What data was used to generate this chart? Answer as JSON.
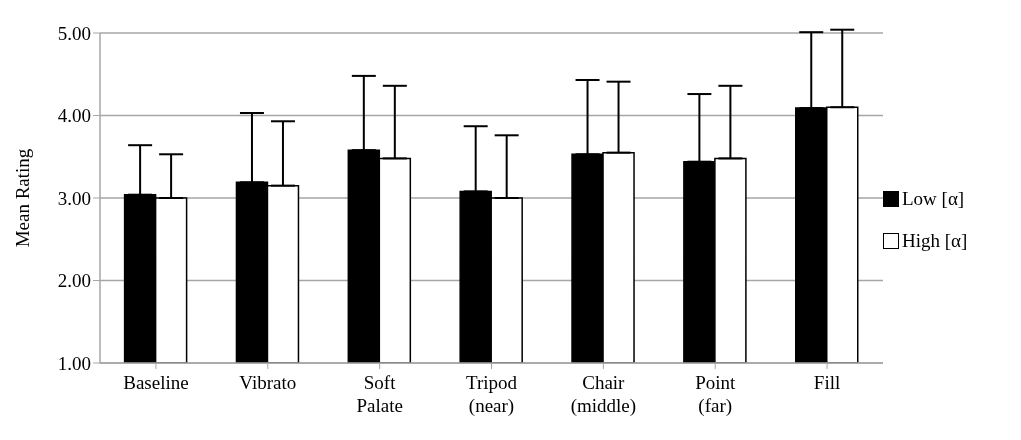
{
  "chart_data": {
    "type": "bar",
    "ylabel": "Mean Rating",
    "categories": [
      "Baseline",
      "Vibrato",
      "Soft Palate",
      "Tripod (near)",
      "Chair (middle)",
      "Point (far)",
      "Fill"
    ],
    "series": [
      {
        "name": "Low [α]",
        "color": "#000000",
        "values": [
          3.04,
          3.19,
          3.58,
          3.08,
          3.53,
          3.44,
          4.09
        ],
        "errors": [
          [
            3.04,
            3.64
          ],
          [
            3.19,
            4.03
          ],
          [
            3.58,
            4.48
          ],
          [
            3.08,
            3.87
          ],
          [
            3.53,
            4.43
          ],
          [
            3.44,
            4.26
          ],
          [
            4.09,
            5.01
          ]
        ]
      },
      {
        "name": "High [α]",
        "color": "#ffffff",
        "values": [
          3.0,
          3.15,
          3.48,
          3.0,
          3.55,
          3.48,
          4.1
        ],
        "errors": [
          [
            3.0,
            3.53
          ],
          [
            3.15,
            3.93
          ],
          [
            3.48,
            4.36
          ],
          [
            3.0,
            3.76
          ],
          [
            3.55,
            4.41
          ],
          [
            3.48,
            4.36
          ],
          [
            4.1,
            5.04
          ]
        ]
      }
    ],
    "ylim": [
      1,
      5
    ],
    "yticks": [
      {
        "value": 1,
        "label": "1.00"
      },
      {
        "value": 2,
        "label": "2.00"
      },
      {
        "value": 3,
        "label": "3.00"
      },
      {
        "value": 4,
        "label": "4.00"
      },
      {
        "value": 5,
        "label": "5.00"
      }
    ],
    "grid": "y",
    "legend": "right"
  }
}
